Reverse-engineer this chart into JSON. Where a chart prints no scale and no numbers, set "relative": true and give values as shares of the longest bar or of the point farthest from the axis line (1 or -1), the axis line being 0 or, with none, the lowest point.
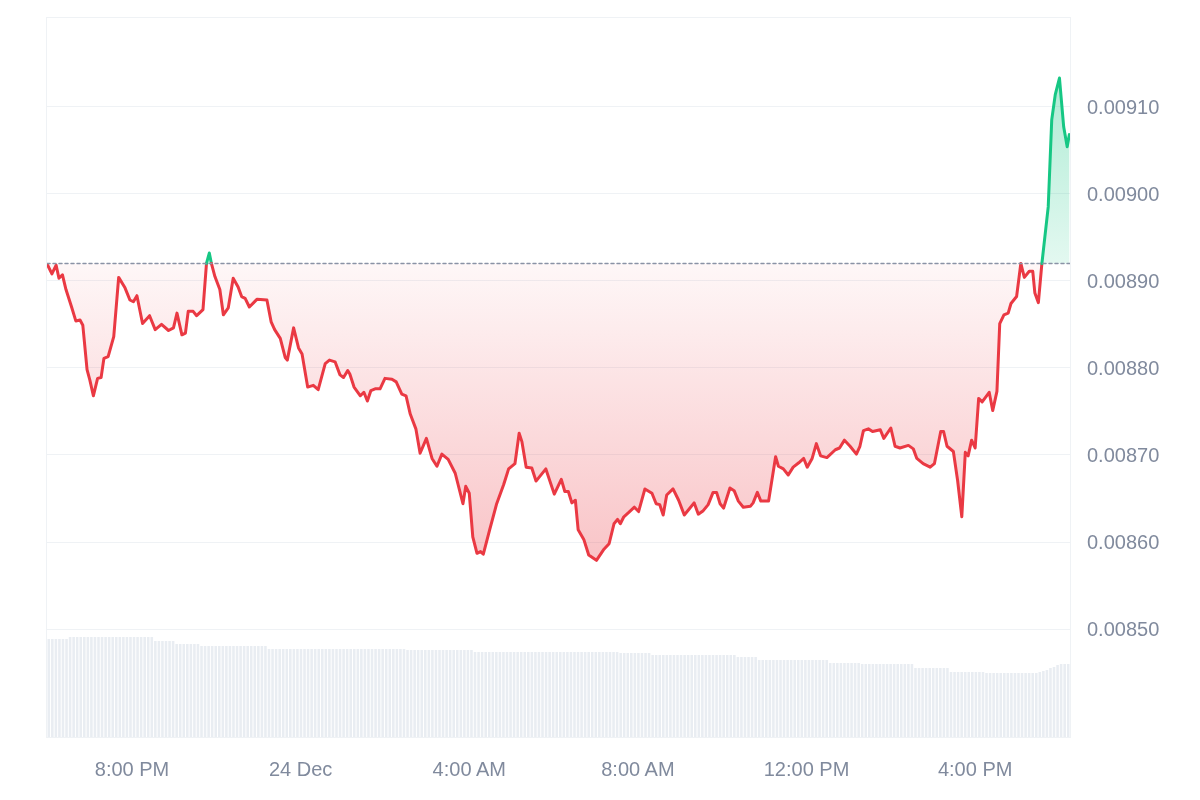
{
  "chart_data": [
    {
      "type": "area",
      "xlim": [
        "--12-23T17:59",
        "--12-24T18:15"
      ],
      "xticks": [
        {
          "value": "--12-23T20:00",
          "label": "8:00 PM"
        },
        {
          "value": "--12-24T00:00",
          "label": "24 Dec"
        },
        {
          "value": "--12-24T04:00",
          "label": "4:00 AM"
        },
        {
          "value": "--12-24T08:00",
          "label": "8:00 AM"
        },
        {
          "value": "--12-24T12:00",
          "label": "12:00 PM"
        },
        {
          "value": "--12-24T16:00",
          "label": "4:00 PM"
        }
      ],
      "ylim": [
        0.008376,
        0.009202
      ],
      "yticks": [
        {
          "value": 0.0085,
          "label": "0.00850"
        },
        {
          "value": 0.0086,
          "label": "0.00860"
        },
        {
          "value": 0.0087,
          "label": "0.00870"
        },
        {
          "value": 0.0088,
          "label": "0.00880"
        },
        {
          "value": 0.0089,
          "label": "0.00890"
        },
        {
          "value": 0.009,
          "label": "0.00900"
        },
        {
          "value": 0.0091,
          "label": "0.00910"
        }
      ],
      "grid": "y",
      "line_style": "solid",
      "ref_lines": [
        {
          "axis": "y",
          "value": 0.00892,
          "color": "#8a93a6",
          "line_style": "dotted"
        }
      ],
      "series": [
        {
          "color": "#ea3943",
          "x": [
            "--12-23T18:00",
            "--12-23T18:06",
            "--12-23T18:12",
            "--12-23T18:16",
            "--12-23T18:21",
            "--12-23T18:26",
            "--12-23T18:34",
            "--12-23T18:40",
            "--12-23T18:46",
            "--12-23T18:50",
            "--12-23T18:56",
            "--12-23T19:00",
            "--12-23T19:05",
            "--12-23T19:11",
            "--12-23T19:16",
            "--12-23T19:20",
            "--12-23T19:26",
            "--12-23T19:34",
            "--12-23T19:41",
            "--12-23T19:50",
            "--12-23T19:57",
            "--12-23T20:02",
            "--12-23T20:07",
            "--12-23T20:15",
            "--12-23T20:25",
            "--12-23T20:33",
            "--12-23T20:42",
            "--12-23T20:52",
            "--12-23T20:59",
            "--12-23T21:04",
            "--12-23T21:11",
            "--12-23T21:16",
            "--12-23T21:20",
            "--12-23T21:27",
            "--12-23T21:32",
            "--12-23T21:41",
            "--12-23T21:46"
          ],
          "values": [
            0.008918,
            0.008908,
            0.008918,
            0.008903,
            0.008907,
            0.00889,
            0.00887,
            0.008854,
            0.008855,
            0.008849,
            0.008798,
            0.008786,
            0.008768,
            0.008788,
            0.008789,
            0.008811,
            0.008813,
            0.008836,
            0.008904,
            0.008892,
            0.008878,
            0.008876,
            0.008883,
            0.008851,
            0.00886,
            0.008844,
            0.00885,
            0.008843,
            0.008846,
            0.008863,
            0.008838,
            0.00884,
            0.008865,
            0.008865,
            0.00886,
            0.008867,
            0.00892
          ]
        },
        {
          "color": "#16c784",
          "x": [
            "--12-23T21:46",
            "--12-23T21:50",
            "--12-23T21:53"
          ],
          "values": [
            0.00892,
            0.008932,
            0.00892
          ]
        },
        {
          "color": "#ea3943",
          "x": [
            "--12-23T21:53",
            "--12-23T21:58",
            "--12-23T22:05",
            "--12-23T22:10",
            "--12-23T22:17",
            "--12-23T22:24",
            "--12-23T22:31",
            "--12-23T22:36",
            "--12-23T22:41",
            "--12-23T22:47",
            "--12-23T22:58",
            "--12-23T23:12",
            "--12-23T23:18",
            "--12-23T23:23",
            "--12-23T23:31",
            "--12-23T23:38",
            "--12-23T23:41",
            "--12-23T23:50",
            "--12-23T23:57",
            "--12-24T00:02",
            "--12-24T00:10",
            "--12-24T00:18",
            "--12-24T00:25",
            "--12-24T00:35",
            "--12-24T00:41",
            "--12-24T00:49",
            "--12-24T00:56",
            "--12-24T01:01",
            "--12-24T01:07",
            "--12-24T01:10",
            "--12-24T01:16",
            "--12-24T01:25",
            "--12-24T01:30",
            "--12-24T01:35",
            "--12-24T01:40",
            "--12-24T01:46",
            "--12-24T01:53",
            "--12-24T02:00",
            "--12-24T02:10",
            "--12-24T02:16",
            "--12-24T02:24",
            "--12-24T02:30",
            "--12-24T02:36",
            "--12-24T02:44",
            "--12-24T02:50",
            "--12-24T02:59",
            "--12-24T03:07",
            "--12-24T03:14",
            "--12-24T03:21",
            "--12-24T03:30",
            "--12-24T03:40",
            "--12-24T03:51",
            "--12-24T03:55",
            "--12-24T04:00",
            "--12-24T04:05",
            "--12-24T04:11",
            "--12-24T04:16",
            "--12-24T04:20",
            "--12-24T04:29",
            "--12-24T04:39",
            "--12-24T04:49",
            "--12-24T04:56",
            "--12-24T05:05",
            "--12-24T05:11",
            "--12-24T05:15",
            "--12-24T05:21",
            "--12-24T05:29",
            "--12-24T05:35",
            "--12-24T05:49",
            "--12-24T06:01",
            "--12-24T06:11",
            "--12-24T06:16",
            "--12-24T06:21",
            "--12-24T06:26",
            "--12-24T06:31",
            "--12-24T06:35",
            "--12-24T06:43",
            "--12-24T06:50",
            "--12-24T07:01",
            "--12-24T07:11",
            "--12-24T07:19",
            "--12-24T07:26",
            "--12-24T07:31",
            "--12-24T07:35",
            "--12-24T07:40",
            "--12-24T07:47",
            "--12-24T07:55",
            "--12-24T08:01",
            "--12-24T08:10",
            "--12-24T08:20",
            "--12-24T08:26",
            "--12-24T08:31",
            "--12-24T08:36",
            "--12-24T08:41",
            "--12-24T08:50",
            "--12-24T08:58",
            "--12-24T09:06",
            "--12-24T09:13",
            "--12-24T09:20",
            "--12-24T09:26",
            "--12-24T09:33",
            "--12-24T09:40",
            "--12-24T09:47",
            "--12-24T09:52",
            "--12-24T09:57",
            "--12-24T10:02",
            "--12-24T10:11",
            "--12-24T10:17",
            "--12-24T10:23",
            "--12-24T10:30",
            "--12-24T10:40",
            "--12-24T10:44",
            "--12-24T10:50",
            "--12-24T10:55",
            "--12-24T11:06",
            "--12-24T11:16",
            "--12-24T11:20",
            "--12-24T11:27",
            "--12-24T11:34",
            "--12-24T11:41",
            "--12-24T11:49",
            "--12-24T11:56",
            "--12-24T12:01",
            "--12-24T12:08",
            "--12-24T12:14",
            "--12-24T12:20",
            "--12-24T12:29",
            "--12-24T12:41",
            "--12-24T12:47",
            "--12-24T12:54",
            "--12-24T13:02",
            "--12-24T13:11",
            "--12-24T13:16",
            "--12-24T13:21",
            "--12-24T13:28",
            "--12-24T13:34",
            "--12-24T13:45",
            "--12-24T13:50",
            "--12-24T14:00",
            "--12-24T14:06",
            "--12-24T14:13",
            "--12-24T14:25",
            "--12-24T14:32",
            "--12-24T14:37",
            "--12-24T14:46",
            "--12-24T14:56",
            "--12-24T15:02",
            "--12-24T15:11",
            "--12-24T15:15",
            "--12-24T15:20",
            "--12-24T15:29",
            "--12-24T15:35",
            "--12-24T15:41",
            "--12-24T15:46",
            "--12-24T15:50",
            "--12-24T15:55",
            "--12-24T16:00",
            "--12-24T16:05",
            "--12-24T16:10",
            "--12-24T16:20",
            "--12-24T16:25",
            "--12-24T16:31",
            "--12-24T16:35",
            "--12-24T16:41",
            "--12-24T16:47",
            "--12-24T16:51",
            "--12-24T16:59",
            "--12-24T17:05",
            "--12-24T17:10",
            "--12-24T17:17",
            "--12-24T17:22",
            "--12-24T17:25",
            "--12-24T17:30",
            "--12-24T17:35"
          ],
          "values": [
            0.00892,
            0.008905,
            0.00889,
            0.008861,
            0.008869,
            0.008903,
            0.008893,
            0.008882,
            0.00888,
            0.00887,
            0.008879,
            0.008878,
            0.008853,
            0.008844,
            0.008834,
            0.008812,
            0.008809,
            0.008846,
            0.008823,
            0.008816,
            0.008778,
            0.00878,
            0.008775,
            0.008805,
            0.008809,
            0.008807,
            0.008792,
            0.008789,
            0.008797,
            0.008793,
            0.008778,
            0.008768,
            0.008772,
            0.008762,
            0.008774,
            0.008776,
            0.008776,
            0.008788,
            0.008787,
            0.008784,
            0.00877,
            0.008768,
            0.008747,
            0.00873,
            0.008702,
            0.008719,
            0.008696,
            0.008687,
            0.008701,
            0.008695,
            0.008679,
            0.008644,
            0.008664,
            0.008656,
            0.008606,
            0.008587,
            0.008589,
            0.008586,
            0.008614,
            0.008644,
            0.008666,
            0.008684,
            0.00869,
            0.008725,
            0.008715,
            0.008686,
            0.008685,
            0.00867,
            0.008684,
            0.008655,
            0.008672,
            0.008658,
            0.008658,
            0.008645,
            0.008648,
            0.008614,
            0.008603,
            0.008585,
            0.008579,
            0.008591,
            0.008598,
            0.008621,
            0.008626,
            0.008621,
            0.008629,
            0.008634,
            0.00864,
            0.008635,
            0.008661,
            0.008656,
            0.008644,
            0.008643,
            0.008631,
            0.008654,
            0.008661,
            0.008648,
            0.008631,
            0.008638,
            0.008645,
            0.008632,
            0.008636,
            0.008643,
            0.008657,
            0.008657,
            0.008644,
            0.008639,
            0.008662,
            0.008659,
            0.008647,
            0.00864,
            0.008641,
            0.008645,
            0.008657,
            0.008647,
            0.008647,
            0.008698,
            0.008687,
            0.008684,
            0.008677,
            0.008686,
            0.008691,
            0.008696,
            0.008686,
            0.008696,
            0.008713,
            0.008699,
            0.008697,
            0.008706,
            0.008708,
            0.008717,
            0.00871,
            0.008701,
            0.00871,
            0.008728,
            0.00873,
            0.008727,
            0.008729,
            0.008719,
            0.008731,
            0.00871,
            0.008708,
            0.008711,
            0.008707,
            0.008696,
            0.00869,
            0.008686,
            0.00869,
            0.008727,
            0.008727,
            0.00871,
            0.008704,
            0.008671,
            0.008629,
            0.008703,
            0.008699,
            0.008717,
            0.008708,
            0.008765,
            0.008761,
            0.008772,
            0.008751,
            0.008773,
            0.008851,
            0.008861,
            0.008863,
            0.008874,
            0.008882,
            0.00892,
            0.008904,
            0.008911,
            0.008911,
            0.008886,
            0.008875,
            0.00892
          ]
        },
        {
          "color": "#16c784",
          "x": [
            "--12-24T17:35",
            "--12-24T17:44",
            "--12-24T17:49",
            "--12-24T17:54",
            "--12-24T18:00",
            "--12-24T18:06",
            "--12-24T18:11",
            "--12-24T18:14"
          ],
          "values": [
            0.00892,
            0.008985,
            0.009085,
            0.009114,
            0.009133,
            0.009077,
            0.009054,
            0.009068
          ]
        }
      ]
    },
    {
      "type": "bar",
      "relative": true,
      "color": "#e9edf2",
      "categories": [
        null,
        null,
        null,
        null,
        null,
        null,
        null,
        null,
        null,
        null,
        null,
        null,
        null,
        null,
        null,
        null,
        null,
        null,
        null,
        null,
        null,
        null,
        null,
        null,
        null,
        null,
        null,
        null,
        null,
        null,
        null,
        null,
        null,
        null,
        null,
        null,
        null,
        null,
        null,
        null,
        null,
        null,
        null,
        null,
        null,
        null,
        null,
        null,
        null,
        null,
        null,
        null,
        null,
        null,
        null,
        null,
        null,
        null,
        null,
        null,
        null,
        null,
        null,
        null,
        null,
        null,
        null,
        null,
        null,
        null,
        null,
        null,
        null,
        null,
        null,
        null,
        null,
        null,
        null,
        null,
        null,
        null,
        null,
        null,
        null,
        null,
        null,
        null,
        null,
        null,
        null,
        null,
        null,
        null,
        null,
        null,
        null,
        null,
        null,
        null,
        null,
        null,
        null,
        null,
        null,
        null,
        null,
        null,
        null,
        null,
        null,
        null,
        null,
        null,
        null,
        null,
        null,
        null,
        null,
        null,
        null,
        null,
        null,
        null,
        null,
        null,
        null,
        null,
        null,
        null,
        null,
        null,
        null,
        null,
        null,
        null,
        null,
        null,
        null,
        null,
        null,
        null,
        null,
        null,
        null,
        null,
        null,
        null,
        null,
        null,
        null,
        null,
        null,
        null,
        null,
        null,
        null,
        null,
        null,
        null,
        null,
        null,
        null,
        null,
        null,
        null,
        null,
        null,
        null,
        null,
        null,
        null,
        null,
        null,
        null,
        null,
        null,
        null,
        null,
        null,
        null,
        null,
        null,
        null,
        null,
        null,
        null,
        null,
        null,
        null,
        null,
        null,
        null,
        null,
        null,
        null,
        null,
        null,
        null,
        null,
        null,
        null,
        null,
        null,
        null,
        null,
        null,
        null,
        null,
        null,
        null,
        null,
        null,
        null,
        null,
        null,
        null,
        null,
        null,
        null,
        null,
        null,
        null,
        null,
        null,
        null,
        null,
        null,
        null,
        null,
        null,
        null,
        null,
        null,
        null,
        null,
        null,
        null,
        null,
        null,
        null,
        null,
        null,
        null,
        null,
        null,
        null,
        null,
        null,
        null,
        null,
        null,
        null,
        null,
        null,
        null,
        null,
        null,
        null,
        null,
        null,
        null,
        null,
        null,
        null,
        null,
        null,
        null,
        null,
        null,
        null,
        null,
        null,
        null,
        null,
        null,
        null,
        null,
        null,
        null,
        null,
        null,
        null,
        null,
        null,
        null,
        null,
        null
      ],
      "values": [
        0.98,
        0.98,
        0.98,
        0.98,
        0.98,
        0.98,
        1,
        1,
        1,
        1,
        1,
        1,
        1,
        1,
        1,
        1,
        1,
        1,
        1,
        1,
        1,
        1,
        1,
        1,
        1,
        1,
        1,
        1,
        1,
        1,
        0.96,
        0.96,
        0.96,
        0.96,
        0.96,
        0.96,
        0.93,
        0.93,
        0.93,
        0.93,
        0.93,
        0.93,
        0.93,
        0.91,
        0.91,
        0.91,
        0.91,
        0.91,
        0.91,
        0.91,
        0.91,
        0.91,
        0.91,
        0.91,
        0.91,
        0.91,
        0.91,
        0.91,
        0.91,
        0.91,
        0.91,
        0.91,
        0.88,
        0.88,
        0.88,
        0.88,
        0.88,
        0.88,
        0.88,
        0.88,
        0.88,
        0.88,
        0.88,
        0.88,
        0.88,
        0.88,
        0.88,
        0.88,
        0.88,
        0.88,
        0.88,
        0.88,
        0.88,
        0.88,
        0.88,
        0.88,
        0.88,
        0.88,
        0.88,
        0.88,
        0.88,
        0.88,
        0.88,
        0.88,
        0.88,
        0.88,
        0.88,
        0.88,
        0.88,
        0.88,
        0.88,
        0.87,
        0.87,
        0.87,
        0.87,
        0.87,
        0.87,
        0.87,
        0.87,
        0.87,
        0.87,
        0.87,
        0.87,
        0.87,
        0.87,
        0.87,
        0.87,
        0.87,
        0.87,
        0.87,
        0.85,
        0.85,
        0.85,
        0.85,
        0.85,
        0.85,
        0.85,
        0.85,
        0.85,
        0.85,
        0.85,
        0.85,
        0.85,
        0.85,
        0.85,
        0.85,
        0.85,
        0.85,
        0.85,
        0.85,
        0.85,
        0.85,
        0.85,
        0.85,
        0.85,
        0.85,
        0.85,
        0.85,
        0.85,
        0.85,
        0.85,
        0.85,
        0.85,
        0.85,
        0.85,
        0.85,
        0.85,
        0.85,
        0.85,
        0.85,
        0.85,
        0.84,
        0.84,
        0.84,
        0.84,
        0.84,
        0.84,
        0.84,
        0.84,
        0.84,
        0.82,
        0.82,
        0.82,
        0.82,
        0.82,
        0.82,
        0.82,
        0.82,
        0.82,
        0.82,
        0.82,
        0.82,
        0.82,
        0.82,
        0.82,
        0.82,
        0.82,
        0.82,
        0.82,
        0.82,
        0.82,
        0.82,
        0.82,
        0.82,
        0.8,
        0.8,
        0.8,
        0.8,
        0.8,
        0.8,
        0.77,
        0.77,
        0.77,
        0.77,
        0.77,
        0.77,
        0.77,
        0.77,
        0.77,
        0.77,
        0.77,
        0.77,
        0.77,
        0.77,
        0.77,
        0.77,
        0.77,
        0.77,
        0.77,
        0.77,
        0.74,
        0.74,
        0.74,
        0.74,
        0.74,
        0.74,
        0.74,
        0.74,
        0.74,
        0.73,
        0.73,
        0.73,
        0.73,
        0.73,
        0.73,
        0.73,
        0.73,
        0.73,
        0.73,
        0.73,
        0.73,
        0.73,
        0.73,
        0.73,
        0.69,
        0.69,
        0.69,
        0.69,
        0.69,
        0.69,
        0.69,
        0.69,
        0.69,
        0.69,
        0.65,
        0.65,
        0.65,
        0.65,
        0.65,
        0.65,
        0.65,
        0.65,
        0.65,
        0.65,
        0.64,
        0.64,
        0.64,
        0.64,
        0.64,
        0.64,
        0.64,
        0.64,
        0.64,
        0.64,
        0.64,
        0.64,
        0.64,
        0.64,
        0.64,
        0.65,
        0.66,
        0.67,
        0.69,
        0.7,
        0.72,
        0.73,
        0.73,
        0.73
      ]
    }
  ]
}
